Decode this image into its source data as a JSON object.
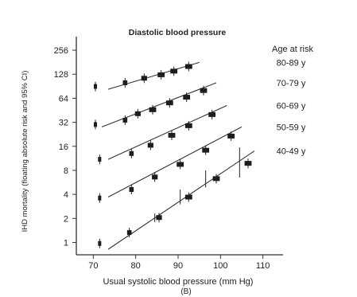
{
  "chart_data": {
    "type": "scatter",
    "title": "Diastolic blood pressure",
    "xlabel": "Usual systolic blood pressure (mm Hg)",
    "ylabel": "IHD mortality (floating absolute risk and 95% CI)",
    "caption": "(B)",
    "legend_title": "Age at risk",
    "xlim": [
      66,
      114
    ],
    "ylim": [
      0.7,
      330
    ],
    "y_scale": "log2",
    "x_ticks": [
      70,
      80,
      90,
      100,
      110
    ],
    "y_ticks": [
      1,
      2,
      4,
      8,
      16,
      32,
      64,
      128,
      256
    ],
    "y_tick_labels": [
      "1",
      "2",
      "4",
      "8",
      "16",
      "32",
      "64",
      "128",
      "256"
    ],
    "grid": false,
    "series": [
      {
        "name": "80-89 y",
        "points": [
          [
            70.5,
            90
          ],
          [
            77.5,
            100
          ],
          [
            82,
            114
          ],
          [
            86,
            126
          ],
          [
            89,
            140
          ],
          [
            92.5,
            160
          ]
        ],
        "fit": [
          [
            73.5,
            83
          ],
          [
            95,
            180
          ]
        ]
      },
      {
        "name": "70-79 y",
        "points": [
          [
            70.5,
            30
          ],
          [
            77.5,
            34
          ],
          [
            80.5,
            41
          ],
          [
            84,
            46
          ],
          [
            88,
            56
          ],
          [
            92,
            66
          ],
          [
            96,
            80
          ]
        ],
        "fit": [
          [
            72,
            28
          ],
          [
            99,
            100
          ]
        ]
      },
      {
        "name": "60-69 y",
        "points": [
          [
            71.5,
            11
          ],
          [
            79,
            13
          ],
          [
            83.5,
            16.5
          ],
          [
            88.5,
            22
          ],
          [
            92.5,
            29
          ],
          [
            98,
            40
          ]
        ],
        "fit": [
          [
            73.5,
            11
          ],
          [
            101.5,
            52
          ]
        ]
      },
      {
        "name": "50-59 y",
        "points": [
          [
            71.5,
            3.6
          ],
          [
            79,
            4.6
          ],
          [
            84.5,
            6.6
          ],
          [
            90.5,
            9.5
          ],
          [
            96.5,
            14.3
          ],
          [
            102.5,
            21.5
          ]
        ],
        "fit": [
          [
            73.5,
            3.7
          ],
          [
            105,
            28
          ]
        ]
      },
      {
        "name": "40-49 y",
        "points": [
          [
            71.5,
            0.97
          ],
          [
            78.5,
            1.33
          ],
          [
            85.5,
            2.05
          ],
          [
            92.5,
            3.7
          ],
          [
            99,
            6.3
          ],
          [
            106.5,
            9.8
          ]
        ],
        "fit": [
          [
            73.5,
            0.82
          ],
          [
            108,
            14
          ]
        ],
        "error_bars": [
          [
            84.5,
            1.8,
            2.3
          ],
          [
            90.5,
            3.0,
            4.6
          ],
          [
            96.5,
            4.9,
            8.0
          ],
          [
            104.5,
            6.5,
            15.5
          ]
        ]
      }
    ]
  }
}
